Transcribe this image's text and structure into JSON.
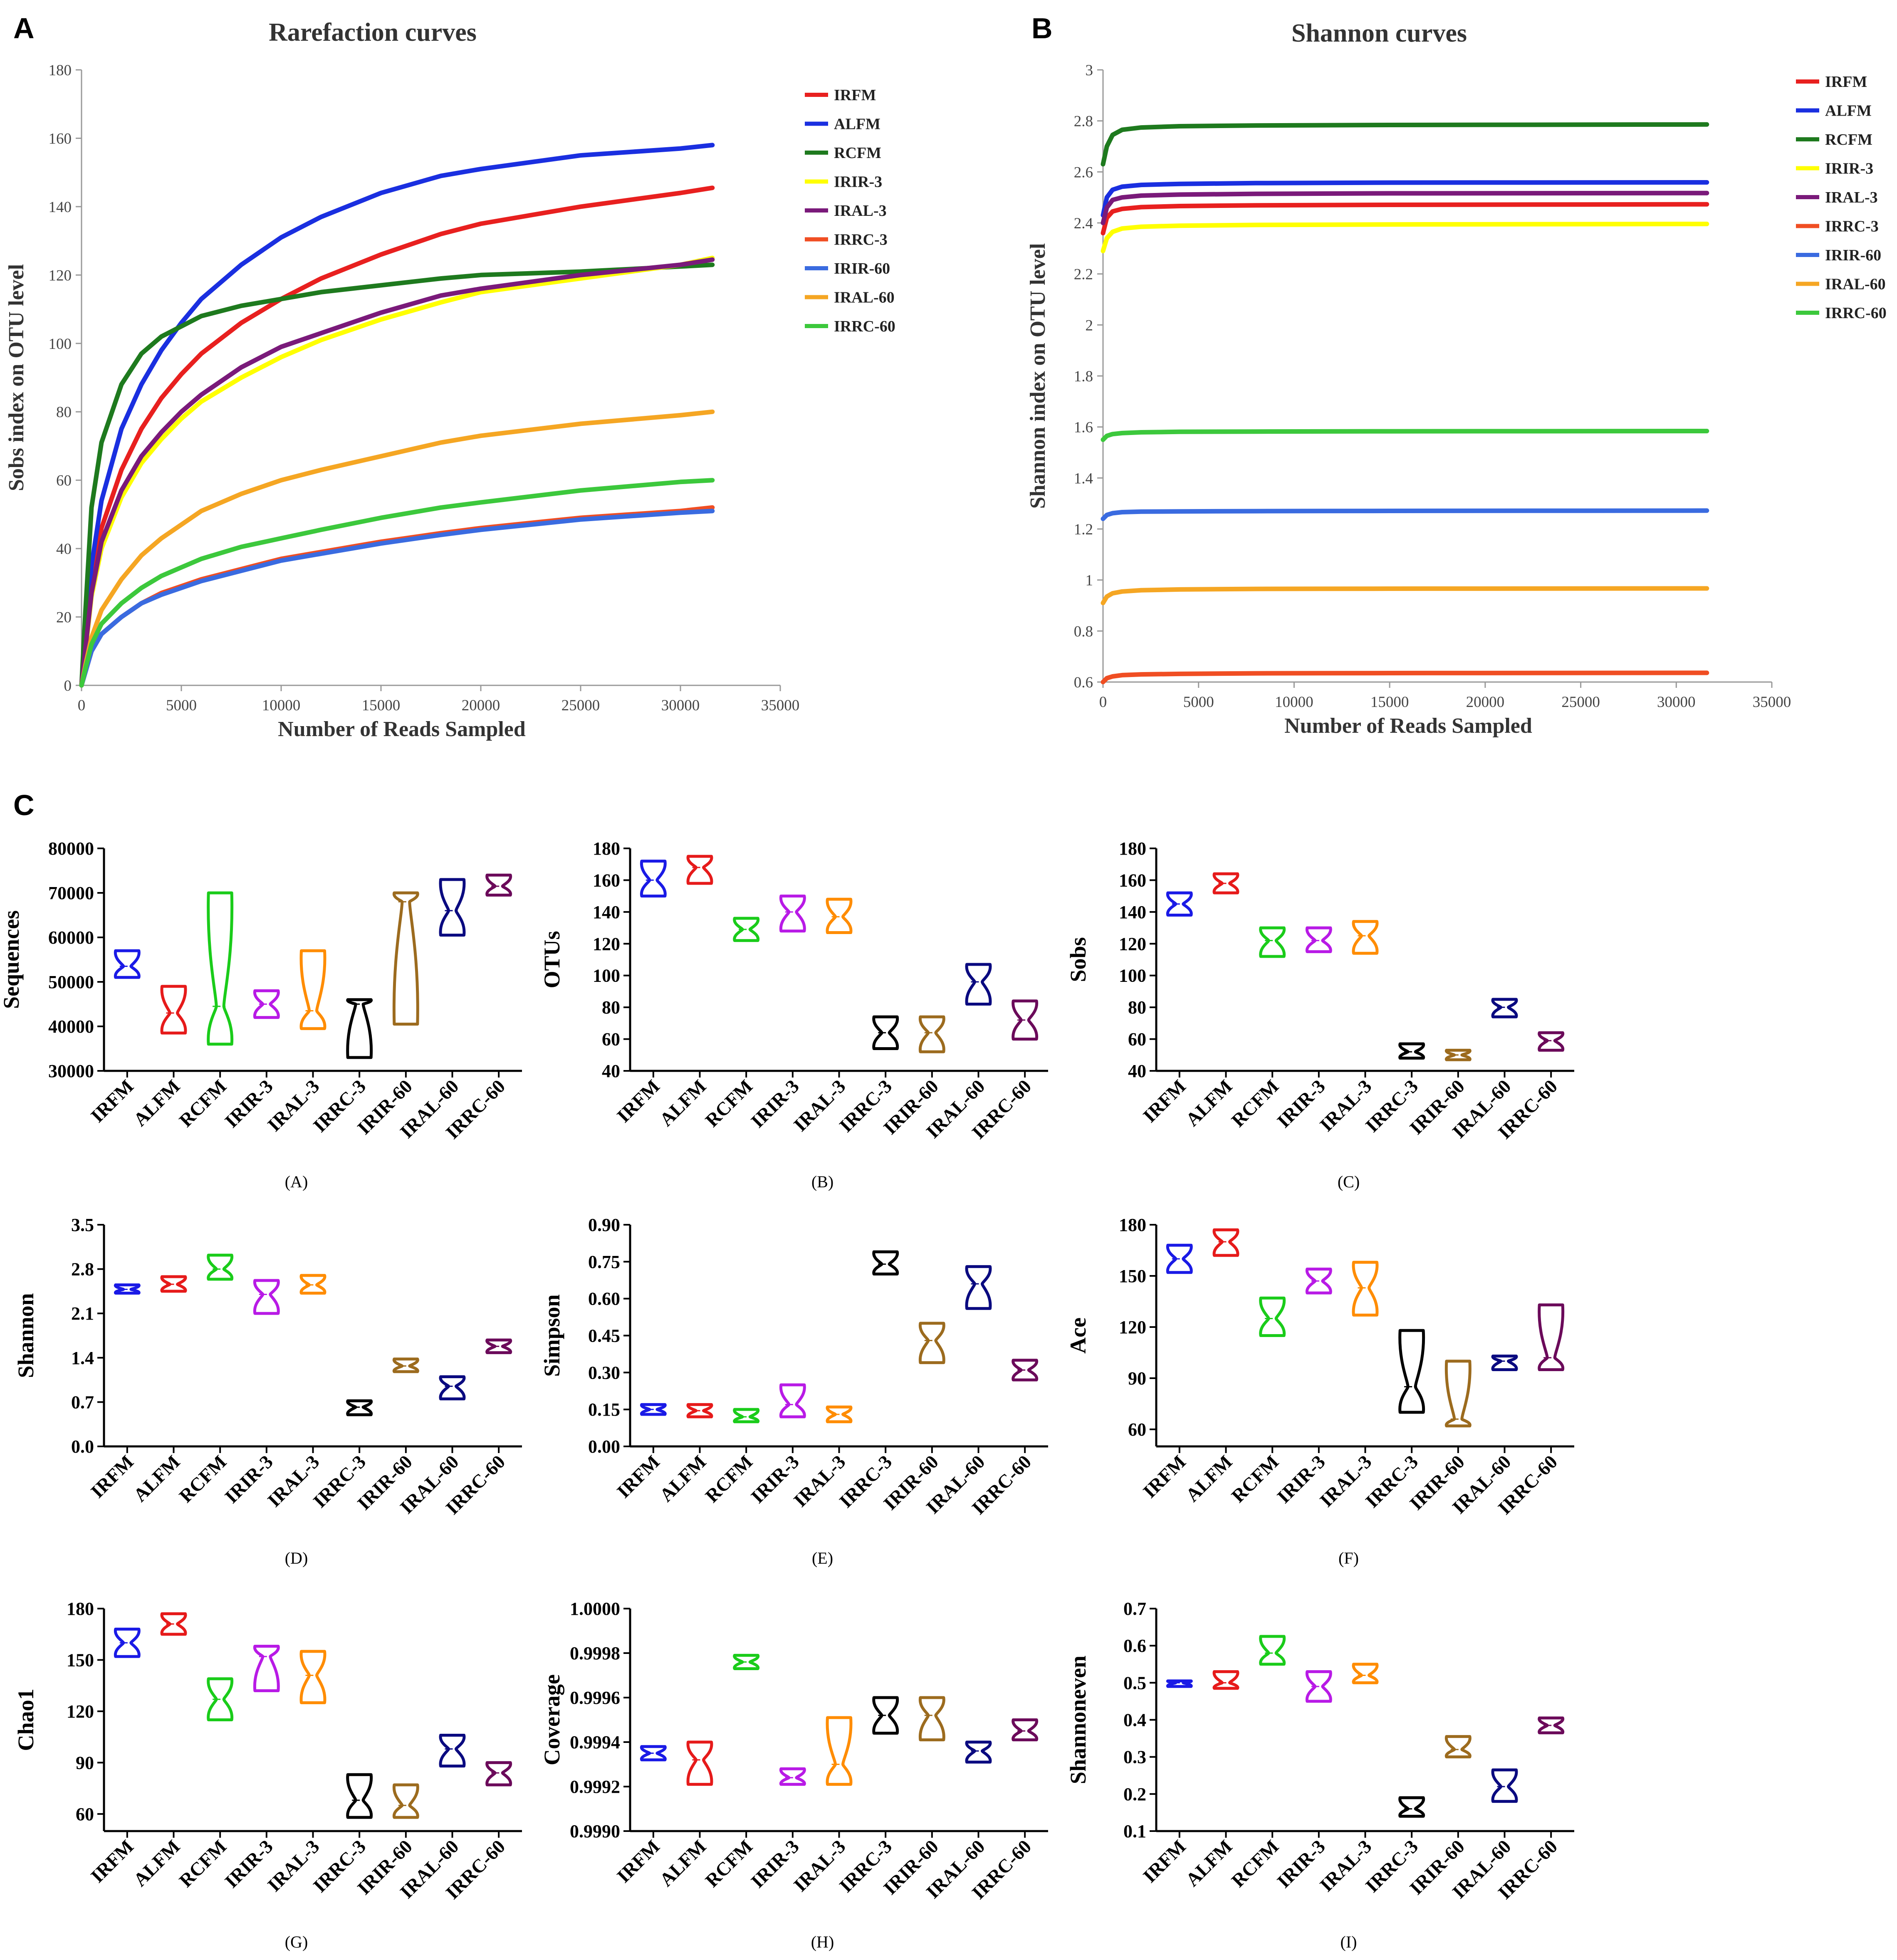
{
  "panel_labels": {
    "A": "A",
    "B": "B",
    "C": "C"
  },
  "chart_data": [
    {
      "id": "A",
      "type": "line",
      "title": "Rarefaction curves",
      "xlabel": "Number of Reads Sampled",
      "ylabel": "Sobs index on OTU level",
      "xlim": [
        0,
        35000
      ],
      "ylim": [
        0,
        180
      ],
      "xticks": [
        0,
        5000,
        10000,
        15000,
        20000,
        25000,
        30000,
        35000
      ],
      "yticks": [
        0,
        20,
        40,
        60,
        80,
        100,
        120,
        140,
        160,
        180
      ],
      "x": [
        0,
        200,
        500,
        1000,
        2000,
        3000,
        4000,
        5000,
        6000,
        8000,
        10000,
        12000,
        15000,
        18000,
        20000,
        25000,
        30000,
        31600
      ],
      "series": [
        {
          "name": "IRFM",
          "color": "#E8201F",
          "values": [
            0,
            12,
            30,
            46,
            63,
            75,
            84,
            91,
            97,
            106,
            113,
            119,
            126,
            132,
            135,
            140,
            144,
            145.5
          ]
        },
        {
          "name": "ALFM",
          "color": "#1A2FE0",
          "values": [
            0,
            14,
            35,
            54,
            75,
            88,
            98,
            106,
            113,
            123,
            131,
            137,
            144,
            149,
            151,
            155,
            157,
            158
          ]
        },
        {
          "name": "RCFM",
          "color": "#1E7A1E",
          "values": [
            0,
            22,
            52,
            71,
            88,
            97,
            102,
            105,
            108,
            111,
            113,
            115,
            117,
            119,
            120,
            121,
            122.5,
            123
          ]
        },
        {
          "name": "IRIR-3",
          "color": "#FFFF00",
          "values": [
            0,
            10,
            26,
            40,
            55,
            65,
            72,
            78,
            83,
            90,
            96,
            101,
            107,
            112,
            115,
            119,
            123,
            125
          ]
        },
        {
          "name": "IRAL-3",
          "color": "#7A1A7A",
          "values": [
            0,
            11,
            27,
            42,
            57,
            67,
            74,
            80,
            85,
            93,
            99,
            103,
            109,
            114,
            116,
            120,
            123,
            124.5
          ]
        },
        {
          "name": "IRRC-3",
          "color": "#F04E23",
          "values": [
            0,
            4,
            10,
            15,
            20,
            24,
            27,
            29,
            31,
            34,
            37,
            39,
            42,
            44.5,
            46,
            49,
            51,
            52
          ]
        },
        {
          "name": "IRIR-60",
          "color": "#3A6BE0",
          "values": [
            0,
            4,
            10,
            15,
            20,
            24,
            26.5,
            28.5,
            30.5,
            33.5,
            36.5,
            38.5,
            41.5,
            44,
            45.5,
            48.5,
            50.5,
            51
          ]
        },
        {
          "name": "IRAL-60",
          "color": "#F5A623",
          "values": [
            0,
            6,
            14,
            22,
            31,
            38,
            43,
            47,
            51,
            56,
            60,
            63,
            67,
            71,
            73,
            76.5,
            79,
            80
          ]
        },
        {
          "name": "IRRC-60",
          "color": "#3CC83C",
          "values": [
            0,
            5,
            12,
            18,
            24,
            28.5,
            32,
            34.5,
            37,
            40.5,
            43,
            45.5,
            49,
            52,
            53.5,
            57,
            59.5,
            60
          ]
        }
      ]
    },
    {
      "id": "B",
      "type": "line",
      "title": "Shannon curves",
      "xlabel": "Number of Reads Sampled",
      "ylabel": "Shannon index on OTU level",
      "xlim": [
        0,
        35000
      ],
      "ylim": [
        0.6,
        3
      ],
      "xticks": [
        0,
        5000,
        10000,
        15000,
        20000,
        25000,
        30000,
        35000
      ],
      "yticks": [
        0.6,
        0.8,
        1,
        1.2,
        1.4,
        1.6,
        1.8,
        2,
        2.2,
        2.4,
        2.6,
        2.8,
        3
      ],
      "x": [
        0,
        200,
        500,
        1000,
        2000,
        4000,
        8000,
        15000,
        31600
      ],
      "series": [
        {
          "name": "IRFM",
          "color": "#E8201F",
          "values": [
            2.36,
            2.42,
            2.445,
            2.455,
            2.462,
            2.466,
            2.469,
            2.471,
            2.473
          ]
        },
        {
          "name": "ALFM",
          "color": "#1A2FE0",
          "values": [
            2.43,
            2.5,
            2.53,
            2.542,
            2.549,
            2.553,
            2.556,
            2.558,
            2.559
          ]
        },
        {
          "name": "RCFM",
          "color": "#1E7A1E",
          "values": [
            2.63,
            2.7,
            2.745,
            2.765,
            2.774,
            2.779,
            2.782,
            2.784,
            2.786
          ]
        },
        {
          "name": "IRIR-3",
          "color": "#FFFF00",
          "values": [
            2.29,
            2.34,
            2.365,
            2.378,
            2.385,
            2.389,
            2.392,
            2.394,
            2.396
          ]
        },
        {
          "name": "IRAL-3",
          "color": "#7A1A7A",
          "values": [
            2.4,
            2.46,
            2.49,
            2.5,
            2.507,
            2.511,
            2.514,
            2.516,
            2.517
          ]
        },
        {
          "name": "IRRC-3",
          "color": "#F04E23",
          "values": [
            0.6,
            0.615,
            0.622,
            0.627,
            0.63,
            0.632,
            0.634,
            0.635,
            0.636
          ]
        },
        {
          "name": "IRIR-60",
          "color": "#3A6BE0",
          "values": [
            1.24,
            1.255,
            1.262,
            1.266,
            1.268,
            1.269,
            1.27,
            1.271,
            1.272
          ]
        },
        {
          "name": "IRAL-60",
          "color": "#F5A623",
          "values": [
            0.91,
            0.935,
            0.948,
            0.955,
            0.96,
            0.963,
            0.965,
            0.966,
            0.967
          ]
        },
        {
          "name": "IRRC-60",
          "color": "#3CC83C",
          "values": [
            1.55,
            1.565,
            1.572,
            1.576,
            1.579,
            1.581,
            1.582,
            1.583,
            1.584
          ]
        }
      ]
    }
  ],
  "violin_panel": {
    "categories": [
      "IRFM",
      "ALFM",
      "RCFM",
      "IRIR-3",
      "IRAL-3",
      "IRRC-3",
      "IRIR-60",
      "IRAL-60",
      "IRRC-60"
    ],
    "colors": [
      "#1A1AE6",
      "#E61A1A",
      "#1ACC1A",
      "#B81AE6",
      "#FF8C00",
      "#000000",
      "#9C6B1E",
      "#0A0A80",
      "#6B0A5A"
    ],
    "plots": [
      {
        "id": "A",
        "sublabel": "(A)",
        "ylabel": "Sequences",
        "ylim": [
          30000,
          80000
        ],
        "yticks": [
          "30000",
          "40000",
          "50000",
          "60000",
          "70000",
          "80000"
        ],
        "data": [
          [
            51000,
            57000,
            53500
          ],
          [
            38500,
            49000,
            43000
          ],
          [
            36000,
            70000,
            44500
          ],
          [
            42000,
            48000,
            45000
          ],
          [
            39500,
            57000,
            43500
          ],
          [
            33000,
            46000,
            45000
          ],
          [
            40500,
            70000,
            68000
          ],
          [
            60500,
            73000,
            66000
          ],
          [
            69500,
            74000,
            71500
          ]
        ]
      },
      {
        "id": "B",
        "sublabel": "(B)",
        "ylabel": "OTUs",
        "ylim": [
          40,
          180
        ],
        "yticks": [
          "40",
          "60",
          "80",
          "100",
          "120",
          "140",
          "160",
          "180"
        ],
        "data": [
          [
            150,
            172,
            160
          ],
          [
            158,
            175,
            168
          ],
          [
            122,
            136,
            129
          ],
          [
            128,
            150,
            140
          ],
          [
            127,
            148,
            137
          ],
          [
            54,
            74,
            64
          ],
          [
            52,
            74,
            64
          ],
          [
            82,
            107,
            96
          ],
          [
            60,
            84,
            72
          ]
        ]
      },
      {
        "id": "C",
        "sublabel": "(C)",
        "ylabel": "Sobs",
        "ylim": [
          40,
          180
        ],
        "yticks": [
          "40",
          "60",
          "80",
          "100",
          "120",
          "140",
          "160",
          "180"
        ],
        "data": [
          [
            138,
            152,
            145
          ],
          [
            152,
            164,
            158
          ],
          [
            112,
            130,
            122
          ],
          [
            115,
            130,
            122
          ],
          [
            114,
            134,
            125
          ],
          [
            48,
            57,
            52
          ],
          [
            47,
            53,
            50
          ],
          [
            74,
            85,
            80
          ],
          [
            53,
            64,
            59
          ]
        ]
      },
      {
        "id": "D",
        "sublabel": "(D)",
        "ylabel": "Shannon",
        "ylim": [
          0,
          3.5
        ],
        "yticks": [
          "0.0",
          "0.7",
          "1.4",
          "2.1",
          "2.8",
          "3.5"
        ],
        "data": [
          [
            2.42,
            2.55,
            2.48
          ],
          [
            2.45,
            2.68,
            2.56
          ],
          [
            2.64,
            3.02,
            2.8
          ],
          [
            2.1,
            2.62,
            2.4
          ],
          [
            2.42,
            2.7,
            2.55
          ],
          [
            0.5,
            0.72,
            0.62
          ],
          [
            1.18,
            1.38,
            1.27
          ],
          [
            0.75,
            1.1,
            0.95
          ],
          [
            1.48,
            1.68,
            1.58
          ]
        ]
      },
      {
        "id": "E",
        "sublabel": "(E)",
        "ylabel": "Simpson",
        "ylim": [
          0,
          0.9
        ],
        "yticks": [
          "0.00",
          "0.15",
          "0.30",
          "0.45",
          "0.60",
          "0.75",
          "0.90"
        ],
        "data": [
          [
            0.13,
            0.17,
            0.15
          ],
          [
            0.12,
            0.17,
            0.145
          ],
          [
            0.1,
            0.15,
            0.12
          ],
          [
            0.12,
            0.25,
            0.17
          ],
          [
            0.1,
            0.16,
            0.13
          ],
          [
            0.7,
            0.79,
            0.74
          ],
          [
            0.34,
            0.5,
            0.43
          ],
          [
            0.56,
            0.73,
            0.66
          ],
          [
            0.27,
            0.35,
            0.31
          ]
        ]
      },
      {
        "id": "F",
        "sublabel": "(F)",
        "ylabel": "Ace",
        "ylim": [
          50,
          180
        ],
        "yticks": [
          "60",
          "90",
          "120",
          "150",
          "180"
        ],
        "data": [
          [
            152,
            168,
            160
          ],
          [
            162,
            177,
            170
          ],
          [
            115,
            137,
            125
          ],
          [
            140,
            154,
            147
          ],
          [
            127,
            158,
            143
          ],
          [
            70,
            118,
            85
          ],
          [
            62,
            100,
            66
          ],
          [
            95,
            103,
            100
          ],
          [
            95,
            133,
            102
          ]
        ]
      },
      {
        "id": "G",
        "sublabel": "(G)",
        "ylabel": "Chao1",
        "ylim": [
          50,
          180
        ],
        "yticks": [
          "60",
          "90",
          "120",
          "150",
          "180"
        ],
        "data": [
          [
            152,
            168,
            160
          ],
          [
            165,
            177,
            171
          ],
          [
            115,
            139,
            127
          ],
          [
            132,
            158,
            152
          ],
          [
            125,
            155,
            141
          ],
          [
            58,
            83,
            68
          ],
          [
            58,
            77,
            65
          ],
          [
            88,
            106,
            98
          ],
          [
            77,
            90,
            84
          ]
        ]
      },
      {
        "id": "H",
        "sublabel": "(H)",
        "ylabel": "Coverage",
        "ylim": [
          0.999,
          1.0
        ],
        "yticks": [
          "0.9990",
          "0.9992",
          "0.9994",
          "0.9996",
          "0.9998",
          "1.0000"
        ],
        "data": [
          [
            0.99932,
            0.99938,
            0.99935
          ],
          [
            0.99921,
            0.9994,
            0.99932
          ],
          [
            0.99973,
            0.99979,
            0.99976
          ],
          [
            0.99921,
            0.99928,
            0.99924
          ],
          [
            0.99921,
            0.99951,
            0.9993
          ],
          [
            0.99944,
            0.9996,
            0.99952
          ],
          [
            0.99941,
            0.9996,
            0.99952
          ],
          [
            0.99931,
            0.9994,
            0.99936
          ],
          [
            0.99941,
            0.9995,
            0.99945
          ]
        ]
      },
      {
        "id": "I",
        "sublabel": "(I)",
        "ylabel": "Shannoneven",
        "ylim": [
          0.1,
          0.7
        ],
        "yticks": [
          "0.1",
          "0.2",
          "0.3",
          "0.4",
          "0.5",
          "0.6",
          "0.7"
        ],
        "data": [
          [
            0.49,
            0.505,
            0.5
          ],
          [
            0.485,
            0.53,
            0.5
          ],
          [
            0.55,
            0.625,
            0.58
          ],
          [
            0.45,
            0.53,
            0.49
          ],
          [
            0.5,
            0.55,
            0.52
          ],
          [
            0.14,
            0.19,
            0.16
          ],
          [
            0.3,
            0.355,
            0.32
          ],
          [
            0.18,
            0.265,
            0.22
          ],
          [
            0.365,
            0.405,
            0.385
          ]
        ]
      }
    ]
  }
}
